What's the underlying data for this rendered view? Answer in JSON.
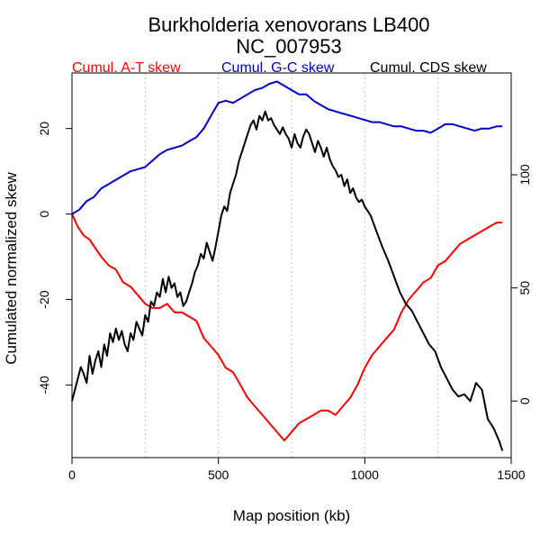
{
  "chart_data": {
    "type": "line",
    "title": "Burkholderia xenovorans LB400",
    "subtitle": "NC_007953",
    "xlabel": "Map position (kb)",
    "ylabel": "Cumulated normalized skew",
    "xlim": [
      0,
      1500
    ],
    "ylim": [
      -57,
      33
    ],
    "y2lim": [
      -25,
      145
    ],
    "x_ticks": [
      0,
      500,
      1000,
      1500
    ],
    "y_ticks": [
      -40,
      -20,
      0,
      20
    ],
    "y2_ticks": [
      0,
      50,
      100
    ],
    "vgrid": [
      0,
      250,
      500,
      750,
      1000,
      1250
    ],
    "series": [
      {
        "name": "Cumul. A-T skew",
        "color": "#ff0000",
        "axis": "left",
        "x": [
          0,
          20,
          40,
          60,
          80,
          100,
          125,
          150,
          175,
          200,
          225,
          250,
          275,
          300,
          325,
          350,
          375,
          400,
          425,
          450,
          475,
          500,
          525,
          550,
          575,
          600,
          625,
          650,
          675,
          700,
          725,
          750,
          775,
          800,
          825,
          850,
          875,
          900,
          925,
          950,
          975,
          1000,
          1025,
          1050,
          1075,
          1100,
          1125,
          1150,
          1175,
          1200,
          1225,
          1250,
          1275,
          1300,
          1325,
          1350,
          1375,
          1400,
          1425,
          1450,
          1470
        ],
        "y": [
          0,
          -3,
          -5,
          -6,
          -8,
          -10,
          -12,
          -13,
          -16,
          -17,
          -19,
          -21,
          -22,
          -22,
          -21,
          -23,
          -23,
          -24,
          -25,
          -29,
          -31,
          -33,
          -36,
          -37,
          -40,
          -43,
          -45,
          -47,
          -49,
          -51,
          -53,
          -51,
          -49,
          -48,
          -47,
          -46,
          -46,
          -47,
          -45,
          -43,
          -40,
          -36,
          -33,
          -31,
          -29,
          -27,
          -23,
          -20,
          -18,
          -16,
          -15,
          -12,
          -11,
          -9,
          -7,
          -6,
          -5,
          -4,
          -3,
          -2,
          -2
        ]
      },
      {
        "name": "Cumul. G-C skew",
        "color": "#0000cc",
        "axis": "left",
        "x": [
          0,
          25,
          50,
          75,
          100,
          125,
          150,
          175,
          200,
          225,
          250,
          275,
          300,
          325,
          350,
          375,
          400,
          425,
          450,
          475,
          500,
          525,
          550,
          575,
          600,
          625,
          650,
          675,
          700,
          725,
          750,
          775,
          800,
          825,
          850,
          875,
          900,
          925,
          950,
          975,
          1000,
          1025,
          1050,
          1075,
          1100,
          1125,
          1150,
          1175,
          1200,
          1225,
          1250,
          1275,
          1300,
          1325,
          1350,
          1375,
          1400,
          1425,
          1450,
          1470
        ],
        "y": [
          0,
          1,
          3,
          4,
          6,
          7,
          8,
          9,
          10,
          10.5,
          11,
          12.5,
          14,
          15,
          15.5,
          16,
          17,
          18,
          20,
          23,
          26,
          26.5,
          26,
          27,
          28,
          29,
          29.5,
          30.5,
          31,
          30,
          29,
          28,
          28,
          26.5,
          25.5,
          24.5,
          24,
          23.5,
          23,
          22.5,
          22,
          21.5,
          21.5,
          21,
          20.5,
          20.5,
          20,
          19.5,
          19.5,
          19,
          20,
          21,
          21,
          20.5,
          20,
          19.5,
          20,
          20,
          20.5,
          20.5
        ]
      },
      {
        "name": "Cumul. CDS skew",
        "color": "#000000",
        "axis": "right",
        "x": [
          0,
          10,
          20,
          30,
          40,
          50,
          60,
          70,
          80,
          90,
          100,
          110,
          120,
          130,
          140,
          150,
          160,
          170,
          180,
          190,
          200,
          210,
          220,
          230,
          240,
          250,
          260,
          270,
          280,
          290,
          300,
          310,
          320,
          330,
          340,
          350,
          360,
          370,
          380,
          390,
          400,
          410,
          420,
          430,
          440,
          450,
          460,
          470,
          480,
          490,
          500,
          510,
          520,
          530,
          540,
          550,
          560,
          570,
          580,
          590,
          600,
          610,
          620,
          630,
          640,
          650,
          660,
          670,
          680,
          690,
          700,
          710,
          720,
          730,
          740,
          750,
          760,
          770,
          780,
          790,
          800,
          810,
          820,
          830,
          840,
          850,
          860,
          870,
          880,
          890,
          900,
          910,
          920,
          930,
          940,
          950,
          960,
          970,
          980,
          990,
          1000,
          1020,
          1040,
          1060,
          1080,
          1100,
          1120,
          1140,
          1160,
          1180,
          1200,
          1220,
          1240,
          1260,
          1280,
          1300,
          1320,
          1340,
          1360,
          1380,
          1400,
          1420,
          1440,
          1460,
          1470
        ],
        "y": [
          0,
          5,
          10,
          15,
          12,
          8,
          20,
          12,
          18,
          22,
          15,
          25,
          20,
          30,
          26,
          32,
          27,
          31,
          25,
          22,
          30,
          27,
          35,
          32,
          29,
          38,
          35,
          44,
          42,
          48,
          46,
          54,
          48,
          55,
          50,
          52,
          46,
          48,
          42,
          44,
          48,
          52,
          57,
          60,
          65,
          63,
          70,
          66,
          62,
          68,
          75,
          82,
          86,
          84,
          92,
          96,
          100,
          106,
          110,
          114,
          118,
          122,
          124,
          120,
          126,
          124,
          128,
          124,
          125,
          122,
          120,
          118,
          121,
          118,
          116,
          112,
          118,
          114,
          112,
          117,
          120,
          118,
          114,
          110,
          115,
          112,
          108,
          112,
          107,
          104,
          102,
          99,
          100,
          95,
          98,
          92,
          94,
          90,
          88,
          89,
          86,
          82,
          75,
          68,
          62,
          55,
          48,
          43,
          40,
          35,
          30,
          25,
          22,
          15,
          10,
          5,
          2,
          3,
          0,
          8,
          5,
          -8,
          -12,
          -18,
          -22
        ]
      }
    ]
  }
}
